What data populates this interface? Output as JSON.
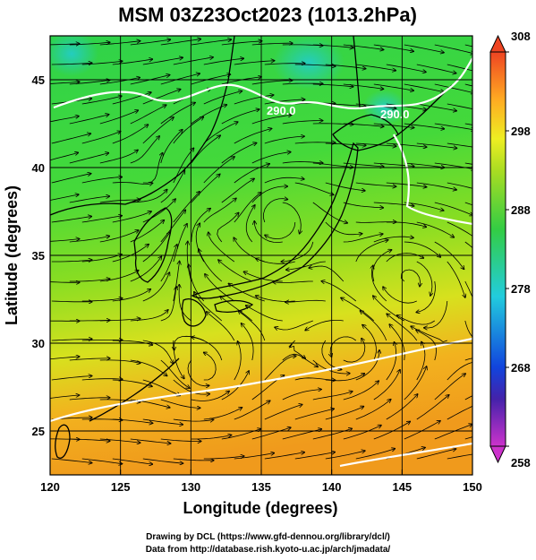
{
  "chart_data": {
    "type": "heatmap",
    "title": "MSM 03Z23Oct2023 (1013.2hPa)",
    "xlabel": "Longitude (degrees)",
    "ylabel": "Latitude  (degrees)",
    "xlim": [
      120,
      150
    ],
    "ylim": [
      22.5,
      47.5
    ],
    "x_ticks": [
      120,
      125,
      130,
      135,
      140,
      145,
      150
    ],
    "y_ticks": [
      25,
      30,
      35,
      40,
      45
    ],
    "grid": true,
    "colorbar": {
      "range": [
        258,
        308
      ],
      "ticks": [
        258,
        268,
        278,
        288,
        298,
        308
      ],
      "colors": [
        "#cc33cc",
        "#2222aa",
        "#1a66ee",
        "#22ccdd",
        "#33cc55",
        "#88dd22",
        "#eeee22",
        "#ffaa22",
        "#ee4422"
      ]
    },
    "contour_label": "290.0",
    "coastline_color": "#000000",
    "contour_color": "#ffffff"
  },
  "credits": {
    "line1": "Drawing by DCL (https://www.gfd-dennou.org/library/dcl/)",
    "line2": "Data from http://database.rish.kyoto-u.ac.jp/arch/jmadata/"
  }
}
